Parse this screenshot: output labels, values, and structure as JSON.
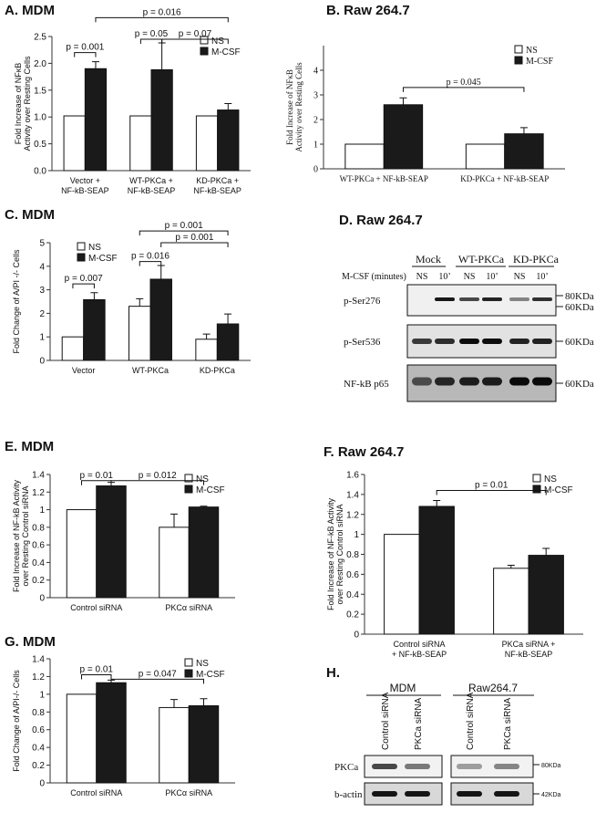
{
  "chart_data": [
    {
      "type": "bar",
      "title": "A. MDM",
      "ylabel": "Fold Increase of NFκB Activity over Resting Cells",
      "categories": [
        "Vector + NF-kB-SEAP",
        "WT-PKCa + NF-kB-SEAP",
        "KD-PKCa + NF-kB-SEAP"
      ],
      "series": [
        {
          "name": "NS",
          "color": "#ffffff",
          "values": [
            1.02,
            1.02,
            1.02
          ],
          "errors": [
            null,
            null,
            null
          ]
        },
        {
          "name": "M-CSF",
          "color": "#1a1a1a",
          "values": [
            1.9,
            1.88,
            1.13
          ],
          "errors": [
            0.13,
            0.5,
            0.12
          ]
        }
      ],
      "ylim": [
        0,
        2.5
      ],
      "yticks": [
        {
          "value": 0,
          "label": "0.0"
        },
        0.5,
        {
          "value": 1,
          "label": "1.0"
        },
        1.5,
        {
          "value": 2,
          "label": "2.0"
        },
        2.5
      ],
      "legend": "upper right",
      "annotations": [
        "p = 0.001",
        "p = 0.016",
        "p = 0.05",
        "p = 0.07"
      ]
    },
    {
      "type": "bar",
      "title": "B. Raw 264.7",
      "ylabel": "Fold Increase of NFκB Activity over Resting Cells",
      "categories": [
        "WT-PKCa + NF-kB-SEAP",
        "KD-PKCa + NF-kB-SEAP"
      ],
      "series": [
        {
          "name": "NS",
          "color": "#ffffff",
          "values": [
            1,
            1
          ],
          "errors": [
            null,
            null
          ]
        },
        {
          "name": "M-CSF",
          "color": "#1a1a1a",
          "values": [
            2.6,
            1.42
          ],
          "errors": [
            0.28,
            0.25
          ]
        }
      ],
      "ylim": [
        0,
        5
      ],
      "yticks": [
        0,
        1,
        2,
        3,
        4
      ],
      "legend": "upper right",
      "annotations": [
        "p = 0.045"
      ]
    },
    {
      "type": "bar",
      "title": "C. MDM",
      "ylabel": "Fold Change of A/PI -/- Cells",
      "categories": [
        "Vector",
        "WT-PKCa",
        "KD-PKCa"
      ],
      "series": [
        {
          "name": "NS",
          "color": "#ffffff",
          "values": [
            1,
            2.3,
            0.9
          ],
          "errors": [
            null,
            0.32,
            0.22
          ]
        },
        {
          "name": "M-CSF",
          "color": "#1a1a1a",
          "values": [
            2.58,
            3.45,
            1.55
          ],
          "errors": [
            0.3,
            0.58,
            0.42
          ]
        }
      ],
      "ylim": [
        0,
        5
      ],
      "yticks": [
        0,
        1,
        2,
        3,
        4,
        5
      ],
      "legend": "upper left",
      "annotations": [
        "p = 0.007",
        "p = 0.016",
        "p = 0.001",
        "p = 0.001"
      ]
    },
    {
      "type": "bar",
      "title": "E. MDM",
      "ylabel": "Fold Increase of NF-kB Activity over Resting Control siRNA",
      "categories": [
        "Control siRNA",
        "PKCα siRNA"
      ],
      "series": [
        {
          "name": "NS",
          "color": "#ffffff",
          "values": [
            1,
            0.8
          ],
          "errors": [
            null,
            0.15
          ]
        },
        {
          "name": "M-CSF",
          "color": "#1a1a1a",
          "values": [
            1.27,
            1.03
          ],
          "errors": [
            0.04,
            0.01
          ]
        }
      ],
      "ylim": [
        0,
        1.4
      ],
      "yticks": [
        0,
        0.2,
        0.4,
        0.6,
        0.8,
        1,
        1.2,
        1.4
      ],
      "legend": "upper right",
      "annotations": [
        "p = 0.01",
        "p = 0.012"
      ]
    },
    {
      "type": "bar",
      "title": "F. Raw 264.7",
      "ylabel": "Fold Increase of NF-kB Activity over Resting Control siRNA",
      "categories": [
        "Control siRNA + NF-kB-SEAP",
        "PKCa siRNA + NF-kB-SEAP"
      ],
      "series": [
        {
          "name": "NS",
          "color": "#ffffff",
          "values": [
            1,
            0.66
          ],
          "errors": [
            null,
            0.03
          ]
        },
        {
          "name": "M-CSF",
          "color": "#1a1a1a",
          "values": [
            1.28,
            0.79
          ],
          "errors": [
            0.06,
            0.07
          ]
        }
      ],
      "ylim": [
        0,
        1.6
      ],
      "yticks": [
        0,
        0.2,
        0.4,
        0.6,
        0.8,
        1,
        1.2,
        1.4,
        1.6
      ],
      "legend": "upper right",
      "annotations": [
        "p = 0.01"
      ]
    },
    {
      "type": "bar",
      "title": "G. MDM",
      "ylabel": "Fold Change of A/PI-/- Cells",
      "categories": [
        "Control siRNA",
        "PKCα siRNA"
      ],
      "series": [
        {
          "name": "NS",
          "color": "#ffffff",
          "values": [
            1,
            0.85
          ],
          "errors": [
            null,
            0.09
          ]
        },
        {
          "name": "M-CSF",
          "color": "#1a1a1a",
          "values": [
            1.13,
            0.87
          ],
          "errors": [
            0.03,
            0.08
          ]
        }
      ],
      "ylim": [
        0,
        1.4
      ],
      "yticks": [
        0,
        0.2,
        0.4,
        0.6,
        0.8,
        1,
        1.2,
        1.4
      ],
      "legend": "upper right",
      "annotations": [
        "p = 0.01",
        "p = 0.047"
      ]
    }
  ],
  "blots": [
    {
      "title": "D. Raw 264.7",
      "groups": [
        "Mock",
        "WT-PKCa",
        "KD-PKCa"
      ],
      "condition": "M-CSF (minutes)",
      "lanes": [
        "NS",
        "10’",
        "NS",
        "10’",
        "NS",
        "10’"
      ],
      "rows": [
        "p-Ser276",
        "p-Ser536",
        "NF-kB p65"
      ],
      "markers": [
        "80KDa",
        "60KDa",
        "60KDa",
        "60KDa"
      ]
    },
    {
      "title": "H.",
      "groups": [
        "MDM",
        "Raw264.7"
      ],
      "lanes": [
        "Control siRNA",
        "PKCa siRNA",
        "Control siRNA",
        "PKCa siRNA"
      ],
      "rows": [
        "PKCa",
        "b-actin"
      ],
      "markers": [
        "80KDa",
        "42KDa"
      ]
    }
  ]
}
